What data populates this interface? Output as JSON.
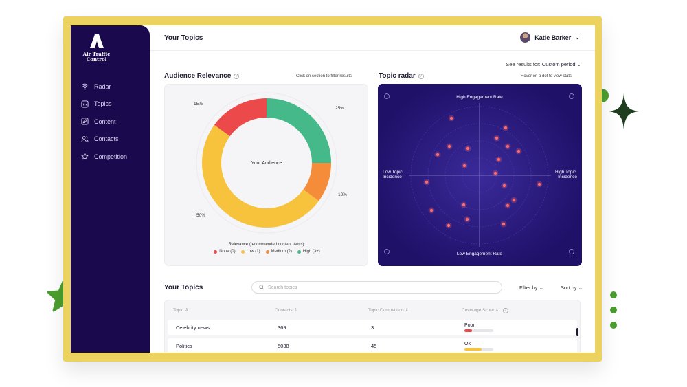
{
  "brand": {
    "name_line1": "Air Traffic",
    "name_line2": "Control"
  },
  "sidebar": {
    "items": [
      {
        "label": "Radar",
        "icon": "wifi-icon"
      },
      {
        "label": "Topics",
        "icon": "grid-icon"
      },
      {
        "label": "Content",
        "icon": "pencil-icon"
      },
      {
        "label": "Contacts",
        "icon": "users-icon"
      },
      {
        "label": "Competition",
        "icon": "star-icon"
      }
    ]
  },
  "header": {
    "title": "Your Topics",
    "user_name": "Katie Barker"
  },
  "period": {
    "label": "See results for:",
    "value": "Custom period"
  },
  "relevance": {
    "title": "Audience Relevance",
    "hint": "Click on section to filter results",
    "center_label": "Your Audience",
    "legend_title": "Relevance (recommended content items):",
    "legend": [
      {
        "label": "None (0)",
        "color": "#ec4a4a"
      },
      {
        "label": "Low (1)",
        "color": "#f7c23c"
      },
      {
        "label": "Medium (2)",
        "color": "#f48c3a"
      },
      {
        "label": "High (3+)",
        "color": "#46b98a"
      }
    ]
  },
  "chart_data": {
    "type": "pie",
    "categories": [
      "High (3+)",
      "Medium (2)",
      "Low (1)",
      "None (0)"
    ],
    "values": [
      25,
      10,
      50,
      15
    ],
    "data_labels": [
      "25%",
      "10%",
      "50%",
      "15%"
    ],
    "colors": [
      "#46b98a",
      "#f48c3a",
      "#f7c23c",
      "#ec4a4a"
    ]
  },
  "radar": {
    "title": "Topic radar",
    "hint": "Hover on a dot to view stats",
    "label_top": "High Engagement Rate",
    "label_bottom": "Low Engagement Rate",
    "label_left_1": "Low Topic",
    "label_left_2": "Incidence",
    "label_right_1": "High Topic",
    "label_right_2": "Incidence",
    "dot_color": "#ff6b6b"
  },
  "topics": {
    "title": "Your Topics",
    "search_placeholder": "Search topics",
    "filter_label": "Filter by",
    "sort_label": "Sort by",
    "columns": [
      "Topic",
      "Contacts",
      "Topic Competition",
      "Coverage Score"
    ],
    "rows": [
      {
        "topic": "Celebrity news",
        "contacts": "369",
        "competition": "3",
        "score": "Poor",
        "score_level": 0.25,
        "score_color": "#ec4a4a"
      },
      {
        "topic": "Politics",
        "contacts": "5038",
        "competition": "45",
        "score": "Ok",
        "score_level": 0.6,
        "score_color": "#f7c23c"
      }
    ]
  },
  "accent": {
    "frame": "#ecd35f",
    "sidebar": "#1a0a4d",
    "deco_green": "#4c9e2f",
    "deco_dark": "#1f3d1f"
  }
}
